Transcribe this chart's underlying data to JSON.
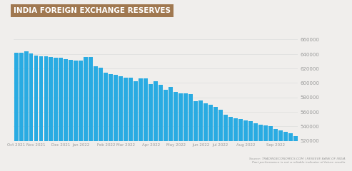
{
  "title": "INDIA FOREIGN EXCHANGE RESERVES",
  "title_bg_color": "#A07850",
  "title_text_color": "#FFFFFF",
  "bar_color": "#29ABE2",
  "bg_color": "#F0EEEC",
  "ylim": [
    520000,
    665000
  ],
  "yticks": [
    520000,
    540000,
    560000,
    580000,
    600000,
    620000,
    640000,
    660000
  ],
  "source_line1": "Source: TRADINGECONOMICS.COM | RESEEVE BANK OF INDIA",
  "source_line2": "Past performance is not a reliable indicator of future results",
  "values": [
    642000,
    642000,
    644000,
    641000,
    638000,
    637000,
    637000,
    636000,
    635000,
    635000,
    633000,
    632000,
    631000,
    631000,
    636000,
    636000,
    623000,
    621000,
    614000,
    612000,
    611000,
    609000,
    607000,
    607000,
    602000,
    606000,
    606000,
    598000,
    602000,
    597000,
    591000,
    594000,
    588000,
    586000,
    586000,
    585000,
    575000,
    576000,
    572000,
    570000,
    567000,
    563000,
    556000,
    553000,
    551000,
    550000,
    548000,
    547000,
    544000,
    542000,
    541000,
    540000,
    536000,
    534000,
    532000,
    530000,
    527000
  ],
  "month_tick_positions": [
    0,
    4,
    9,
    13,
    18,
    22,
    27,
    32,
    37,
    41,
    46,
    52
  ],
  "month_labels": [
    "Oct 2021",
    "Nov 2021",
    "Dec 2021",
    "Jan 2022",
    "Feb 2022",
    "Mar 2022",
    "Apr 2022",
    "May 2022",
    "Jun 2022",
    "Jul 2022",
    "Aug 2022",
    "Sep 2022"
  ]
}
